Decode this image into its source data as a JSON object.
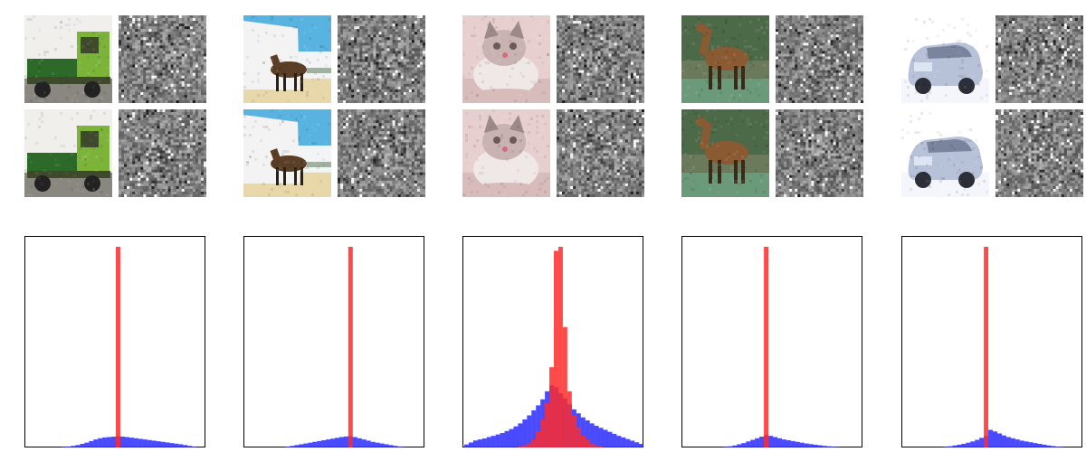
{
  "figure": {
    "columns": [
      {
        "subject": "truck",
        "image_palette": {
          "bg": "#f1efec",
          "ground": "#8a8680",
          "main": "#7cb43a",
          "dark": "#3f4a2c",
          "accent": "#2d6a2a",
          "shade": "#b8cc8a"
        },
        "saliency_palette": {
          "base": "#8c8c8c",
          "hi": "#d6d6d6",
          "lo": "#3c3c3c"
        },
        "histogram": {
          "bins": 40,
          "xlim": [
            -1,
            1
          ],
          "ylim": [
            0,
            1
          ],
          "red_series": [
            0,
            0,
            0,
            0,
            0,
            0,
            0,
            0,
            0,
            0,
            0,
            0,
            0,
            0,
            0,
            0,
            0,
            0,
            0,
            0,
            1.0,
            0,
            0,
            0,
            0,
            0,
            0,
            0,
            0,
            0,
            0,
            0,
            0,
            0,
            0,
            0,
            0,
            0,
            0,
            0
          ],
          "blue_series": [
            0,
            0,
            0,
            0,
            0,
            0,
            0,
            0,
            0.003,
            0.005,
            0.008,
            0.012,
            0.018,
            0.024,
            0.032,
            0.04,
            0.046,
            0.05,
            0.052,
            0.054,
            0.056,
            0.054,
            0.052,
            0.049,
            0.046,
            0.043,
            0.04,
            0.037,
            0.034,
            0.031,
            0.028,
            0.025,
            0.022,
            0.019,
            0.016,
            0.012,
            0.008,
            0.004,
            0,
            0
          ]
        }
      },
      {
        "subject": "horse",
        "image_palette": {
          "bg": "#f2f4f6",
          "ground": "#e8d7a8",
          "main": "#5a3e26",
          "dark": "#2a1f14",
          "accent": "#2f9ad6",
          "shade": "#d9e9f2"
        },
        "saliency_palette": {
          "base": "#9a9a9a",
          "hi": "#e2e2e2",
          "lo": "#3a3a3a"
        },
        "histogram": {
          "bins": 40,
          "xlim": [
            -1,
            1
          ],
          "ylim": [
            0,
            1
          ],
          "red_series": [
            0,
            0,
            0,
            0,
            0,
            0,
            0,
            0,
            0,
            0,
            0,
            0,
            0,
            0,
            0,
            0,
            0,
            0,
            0,
            0,
            0,
            0,
            0,
            1.0,
            0,
            0,
            0,
            0,
            0,
            0,
            0,
            0,
            0,
            0,
            0,
            0,
            0,
            0,
            0,
            0
          ],
          "blue_series": [
            0,
            0,
            0,
            0,
            0,
            0,
            0,
            0,
            0,
            0.004,
            0.008,
            0.012,
            0.016,
            0.02,
            0.024,
            0.028,
            0.032,
            0.036,
            0.04,
            0.044,
            0.048,
            0.052,
            0.055,
            0.056,
            0.052,
            0.046,
            0.04,
            0.034,
            0.028,
            0.024,
            0.02,
            0.016,
            0.012,
            0.008,
            0.005,
            0.002,
            0,
            0,
            0,
            0
          ]
        }
      },
      {
        "subject": "cat",
        "image_palette": {
          "bg": "#e7cfd0",
          "ground": "#d8bbbb",
          "main": "#f0e8e6",
          "dark": "#6b5a58",
          "accent": "#9c8a88",
          "shade": "#c9b3b2"
        },
        "saliency_palette": {
          "base": "#9e9e9e",
          "hi": "#eaeaea",
          "lo": "#3e3e3e"
        },
        "histogram": {
          "bins": 40,
          "xlim": [
            -1,
            1
          ],
          "ylim": [
            0,
            1
          ],
          "red_series": [
            0,
            0,
            0,
            0,
            0,
            0,
            0,
            0,
            0,
            0,
            0,
            0,
            0.005,
            0.01,
            0.02,
            0.04,
            0.08,
            0.14,
            0.22,
            0.4,
            0.98,
            1.0,
            0.6,
            0.28,
            0.16,
            0.1,
            0.06,
            0.04,
            0.02,
            0.01,
            0.005,
            0,
            0,
            0,
            0,
            0,
            0,
            0,
            0,
            0
          ],
          "blue_series": [
            0.015,
            0.025,
            0.035,
            0.04,
            0.045,
            0.052,
            0.058,
            0.065,
            0.072,
            0.082,
            0.092,
            0.105,
            0.12,
            0.14,
            0.16,
            0.185,
            0.21,
            0.24,
            0.28,
            0.31,
            0.3,
            0.27,
            0.245,
            0.215,
            0.19,
            0.17,
            0.15,
            0.135,
            0.12,
            0.108,
            0.098,
            0.088,
            0.078,
            0.068,
            0.058,
            0.05,
            0.042,
            0.034,
            0.026,
            0.018
          ]
        }
      },
      {
        "subject": "deer",
        "image_palette": {
          "bg": "#6a7a5a",
          "ground": "#3f6a48",
          "main": "#8a5a32",
          "dark": "#3a2a1a",
          "accent": "#5a8a3a",
          "shade": "#a7b08a"
        },
        "saliency_palette": {
          "base": "#a3a3a3",
          "hi": "#ececec",
          "lo": "#444444"
        },
        "histogram": {
          "bins": 40,
          "xlim": [
            -1,
            1
          ],
          "ylim": [
            0,
            1
          ],
          "red_series": [
            0,
            0,
            0,
            0,
            0,
            0,
            0,
            0,
            0,
            0,
            0,
            0,
            0,
            0,
            0,
            0,
            0,
            0,
            1.0,
            0,
            0,
            0,
            0,
            0,
            0,
            0,
            0,
            0,
            0,
            0,
            0,
            0,
            0,
            0,
            0,
            0,
            0,
            0,
            0,
            0
          ],
          "blue_series": [
            0,
            0,
            0,
            0,
            0,
            0,
            0,
            0,
            0,
            0.003,
            0.006,
            0.01,
            0.016,
            0.022,
            0.03,
            0.038,
            0.046,
            0.054,
            0.062,
            0.058,
            0.052,
            0.046,
            0.04,
            0.036,
            0.032,
            0.028,
            0.024,
            0.02,
            0.017,
            0.014,
            0.011,
            0.008,
            0.006,
            0.004,
            0.002,
            0,
            0,
            0,
            0,
            0
          ]
        }
      },
      {
        "subject": "car",
        "image_palette": {
          "bg": "#ffffff",
          "ground": "#f4f6fb",
          "main": "#b7c1d8",
          "dark": "#2c2f38",
          "accent": "#7a849c",
          "shade": "#dde4f2"
        },
        "saliency_palette": {
          "base": "#9a9a9a",
          "hi": "#e4e4e4",
          "lo": "#3c3c3c"
        },
        "histogram": {
          "bins": 40,
          "xlim": [
            -1,
            1
          ],
          "ylim": [
            0,
            1
          ],
          "red_series": [
            0,
            0,
            0,
            0,
            0,
            0,
            0,
            0,
            0,
            0,
            0,
            0,
            0,
            0,
            0,
            0,
            0,
            0,
            1.0,
            0,
            0,
            0,
            0,
            0,
            0,
            0,
            0,
            0,
            0,
            0,
            0,
            0,
            0,
            0,
            0,
            0,
            0,
            0,
            0,
            0
          ],
          "blue_series": [
            0,
            0,
            0,
            0,
            0,
            0,
            0,
            0,
            0,
            0.003,
            0.006,
            0.01,
            0.014,
            0.018,
            0.024,
            0.03,
            0.038,
            0.048,
            0.058,
            0.088,
            0.08,
            0.07,
            0.06,
            0.052,
            0.046,
            0.04,
            0.034,
            0.03,
            0.026,
            0.022,
            0.018,
            0.014,
            0.01,
            0.007,
            0.004,
            0.002,
            0,
            0,
            0,
            0
          ]
        }
      }
    ]
  },
  "chart_data": [
    {
      "type": "bar",
      "title": "",
      "xlabel": "",
      "ylabel": "",
      "grid": false,
      "legend": "none",
      "series": [
        {
          "values": [
            0,
            0,
            0,
            0,
            0,
            0,
            0,
            0,
            0,
            0,
            0,
            0,
            0,
            0,
            0,
            0,
            0,
            0,
            0,
            0,
            1.0,
            0,
            0,
            0,
            0,
            0,
            0,
            0,
            0,
            0,
            0,
            0,
            0,
            0,
            0,
            0,
            0,
            0,
            0,
            0
          ],
          "color": "#ff2a2a"
        },
        {
          "values": [
            0,
            0,
            0,
            0,
            0,
            0,
            0,
            0,
            0.003,
            0.005,
            0.008,
            0.012,
            0.018,
            0.024,
            0.032,
            0.04,
            0.046,
            0.05,
            0.052,
            0.054,
            0.056,
            0.054,
            0.052,
            0.049,
            0.046,
            0.043,
            0.04,
            0.037,
            0.034,
            0.031,
            0.028,
            0.025,
            0.022,
            0.019,
            0.016,
            0.012,
            0.008,
            0.004,
            0,
            0
          ],
          "color": "#2a2aff"
        }
      ]
    },
    {
      "type": "bar",
      "title": "",
      "xlabel": "",
      "ylabel": "",
      "grid": false,
      "legend": "none",
      "series": [
        {
          "values": [
            0,
            0,
            0,
            0,
            0,
            0,
            0,
            0,
            0,
            0,
            0,
            0,
            0,
            0,
            0,
            0,
            0,
            0,
            0,
            0,
            0,
            0,
            0,
            1.0,
            0,
            0,
            0,
            0,
            0,
            0,
            0,
            0,
            0,
            0,
            0,
            0,
            0,
            0,
            0,
            0
          ],
          "color": "#ff2a2a"
        },
        {
          "values": [
            0,
            0,
            0,
            0,
            0,
            0,
            0,
            0,
            0,
            0.004,
            0.008,
            0.012,
            0.016,
            0.02,
            0.024,
            0.028,
            0.032,
            0.036,
            0.04,
            0.044,
            0.048,
            0.052,
            0.055,
            0.056,
            0.052,
            0.046,
            0.04,
            0.034,
            0.028,
            0.024,
            0.02,
            0.016,
            0.012,
            0.008,
            0.005,
            0.002,
            0,
            0,
            0,
            0
          ],
          "color": "#2a2aff"
        }
      ]
    },
    {
      "type": "bar",
      "title": "",
      "xlabel": "",
      "ylabel": "",
      "grid": false,
      "legend": "none",
      "series": [
        {
          "values": [
            0,
            0,
            0,
            0,
            0,
            0,
            0,
            0,
            0,
            0,
            0,
            0,
            0.005,
            0.01,
            0.02,
            0.04,
            0.08,
            0.14,
            0.22,
            0.4,
            0.98,
            1.0,
            0.6,
            0.28,
            0.16,
            0.1,
            0.06,
            0.04,
            0.02,
            0.01,
            0.005,
            0,
            0,
            0,
            0,
            0,
            0,
            0,
            0,
            0
          ],
          "color": "#ff2a2a"
        },
        {
          "values": [
            0.015,
            0.025,
            0.035,
            0.04,
            0.045,
            0.052,
            0.058,
            0.065,
            0.072,
            0.082,
            0.092,
            0.105,
            0.12,
            0.14,
            0.16,
            0.185,
            0.21,
            0.24,
            0.28,
            0.31,
            0.3,
            0.27,
            0.245,
            0.215,
            0.19,
            0.17,
            0.15,
            0.135,
            0.12,
            0.108,
            0.098,
            0.088,
            0.078,
            0.068,
            0.058,
            0.05,
            0.042,
            0.034,
            0.026,
            0.018
          ],
          "color": "#2a2aff"
        }
      ]
    },
    {
      "type": "bar",
      "title": "",
      "xlabel": "",
      "ylabel": "",
      "grid": false,
      "legend": "none",
      "series": [
        {
          "values": [
            0,
            0,
            0,
            0,
            0,
            0,
            0,
            0,
            0,
            0,
            0,
            0,
            0,
            0,
            0,
            0,
            0,
            0,
            1.0,
            0,
            0,
            0,
            0,
            0,
            0,
            0,
            0,
            0,
            0,
            0,
            0,
            0,
            0,
            0,
            0,
            0,
            0,
            0,
            0,
            0
          ],
          "color": "#ff2a2a"
        },
        {
          "values": [
            0,
            0,
            0,
            0,
            0,
            0,
            0,
            0,
            0,
            0.003,
            0.006,
            0.01,
            0.016,
            0.022,
            0.03,
            0.038,
            0.046,
            0.054,
            0.062,
            0.058,
            0.052,
            0.046,
            0.04,
            0.036,
            0.032,
            0.028,
            0.024,
            0.02,
            0.017,
            0.014,
            0.011,
            0.008,
            0.006,
            0.004,
            0.002,
            0,
            0,
            0,
            0,
            0
          ],
          "color": "#2a2aff"
        }
      ]
    },
    {
      "type": "bar",
      "title": "",
      "xlabel": "",
      "ylabel": "",
      "grid": false,
      "legend": "none",
      "series": [
        {
          "values": [
            0,
            0,
            0,
            0,
            0,
            0,
            0,
            0,
            0,
            0,
            0,
            0,
            0,
            0,
            0,
            0,
            0,
            0,
            1.0,
            0,
            0,
            0,
            0,
            0,
            0,
            0,
            0,
            0,
            0,
            0,
            0,
            0,
            0,
            0,
            0,
            0,
            0,
            0,
            0,
            0
          ],
          "color": "#ff2a2a"
        },
        {
          "values": [
            0,
            0,
            0,
            0,
            0,
            0,
            0,
            0,
            0,
            0.003,
            0.006,
            0.01,
            0.014,
            0.018,
            0.024,
            0.03,
            0.038,
            0.048,
            0.058,
            0.088,
            0.08,
            0.07,
            0.06,
            0.052,
            0.046,
            0.04,
            0.034,
            0.03,
            0.026,
            0.022,
            0.018,
            0.014,
            0.01,
            0.007,
            0.004,
            0.002,
            0,
            0,
            0,
            0
          ],
          "color": "#2a2aff"
        }
      ]
    }
  ]
}
